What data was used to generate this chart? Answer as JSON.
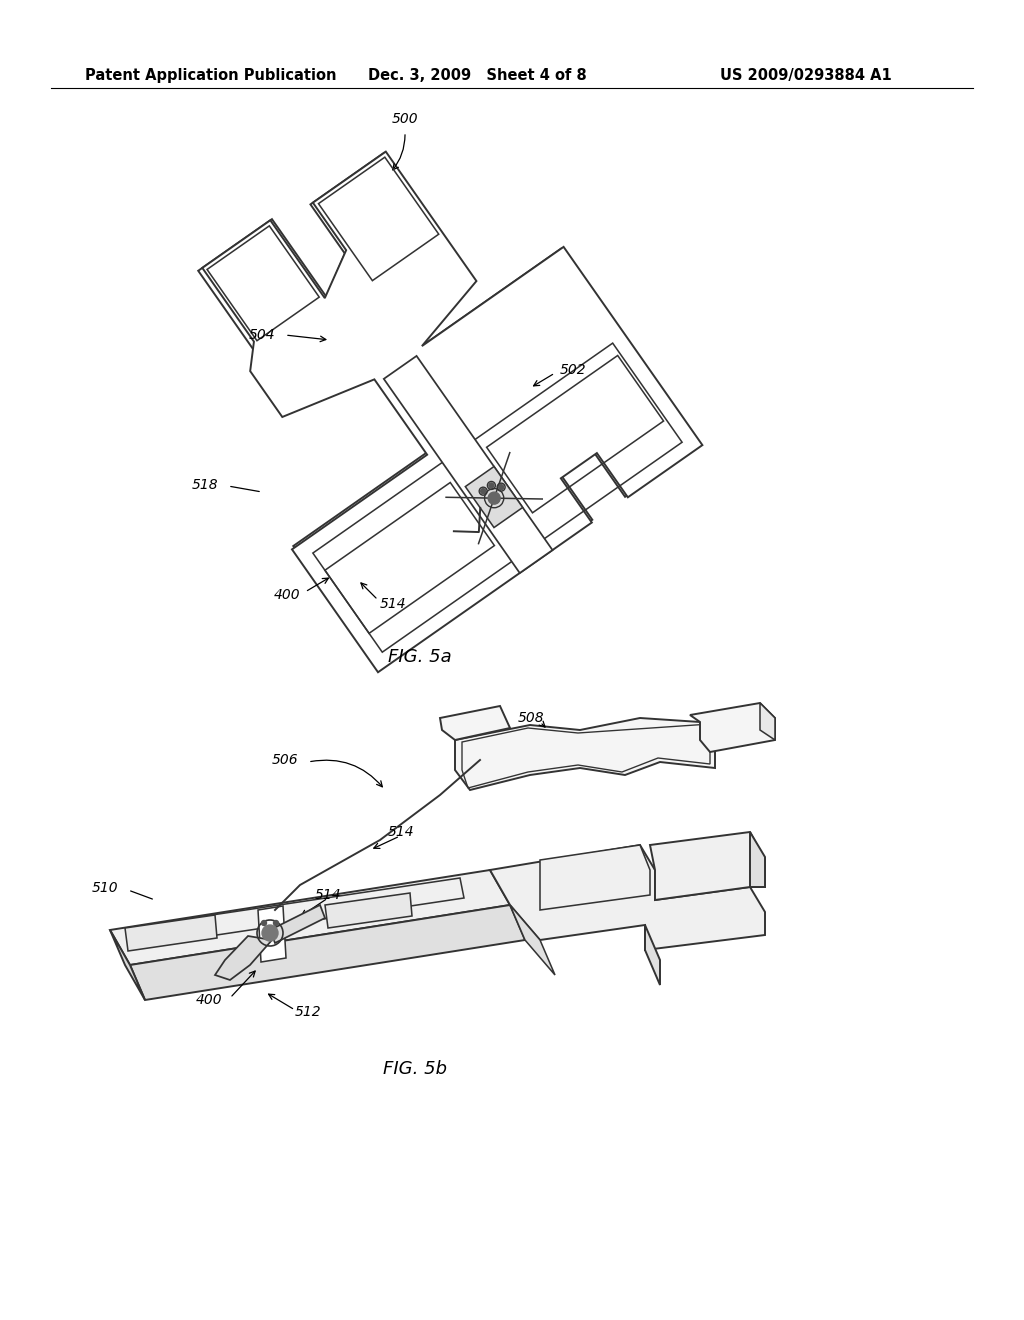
{
  "bg_color": "#ffffff",
  "header_left": "Patent Application Publication",
  "header_mid": "Dec. 3, 2009   Sheet 4 of 8",
  "header_right": "US 2009/0293884 A1",
  "fig5a_label": "FIG. 5a",
  "fig5b_label": "FIG. 5b",
  "line_color": "#333333",
  "fill_color": "#f5f5f5"
}
